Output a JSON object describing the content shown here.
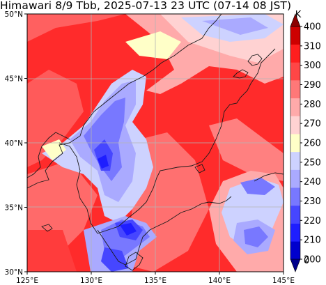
{
  "title": "Himawari 8/9 Tbb, 2025-07-13 23 UTC (07-14 08 JST)",
  "map": {
    "lon_range": [
      125,
      145
    ],
    "lat_range": [
      30,
      50
    ],
    "lon_ticks": [
      {
        "value": 125,
        "label": "125°E"
      },
      {
        "value": 130,
        "label": "130°E"
      },
      {
        "value": 135,
        "label": "135°E"
      },
      {
        "value": 140,
        "label": "140°E"
      },
      {
        "value": 145,
        "label": "145°E"
      }
    ],
    "lat_ticks": [
      {
        "value": 30,
        "label": "30°N"
      },
      {
        "value": 35,
        "label": "35°N"
      },
      {
        "value": 40,
        "label": "40°N"
      },
      {
        "value": 45,
        "label": "45°N"
      },
      {
        "value": 50,
        "label": "50°N"
      }
    ],
    "grid": true
  },
  "colorbar": {
    "unit": "K",
    "levels": [
      {
        "value": 200,
        "label": "200"
      },
      {
        "value": 210,
        "label": "210"
      },
      {
        "value": 220,
        "label": "220"
      },
      {
        "value": 230,
        "label": "230"
      },
      {
        "value": 240,
        "label": "240"
      },
      {
        "value": 250,
        "label": "250"
      },
      {
        "value": 260,
        "label": "260"
      },
      {
        "value": 270,
        "label": "270"
      },
      {
        "value": 280,
        "label": "280"
      },
      {
        "value": 290,
        "label": "290"
      },
      {
        "value": 300,
        "label": "300"
      },
      {
        "value": 310,
        "label": "310"
      },
      {
        "value": 400,
        "label": "400"
      }
    ],
    "bottom_label": "0",
    "colors": [
      "#00008b",
      "#0000cd",
      "#1e1eff",
      "#4646ff",
      "#7878ff",
      "#aaaaff",
      "#cdd2ff",
      "#ffffc8",
      "#ffd2d2",
      "#ffaaaa",
      "#ff7878",
      "#ff4646",
      "#ff1e1e",
      "#cd0000",
      "#8b0000"
    ]
  }
}
